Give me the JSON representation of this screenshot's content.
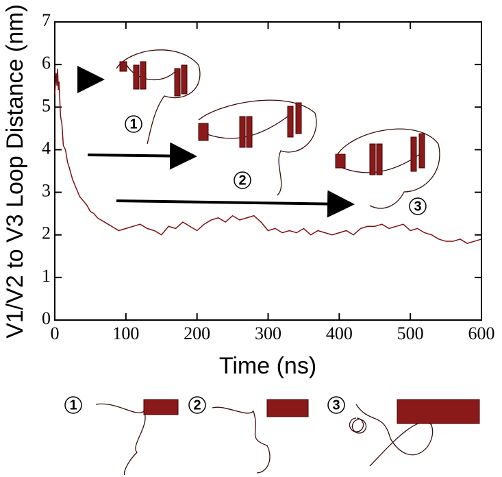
{
  "chart_data": {
    "type": "line",
    "xlabel": "Time (ns)",
    "ylabel": "V1/V2 to V3 Loop Distance (nm)",
    "x": [
      0,
      2,
      3,
      4,
      5,
      6,
      8,
      10,
      12,
      15,
      18,
      20,
      25,
      30,
      35,
      40,
      45,
      50,
      55,
      60,
      65,
      70,
      75,
      80,
      90,
      100,
      110,
      120,
      130,
      140,
      150,
      160,
      170,
      180,
      190,
      200,
      210,
      220,
      230,
      240,
      250,
      260,
      270,
      280,
      290,
      300,
      310,
      320,
      330,
      340,
      350,
      360,
      370,
      380,
      390,
      400,
      410,
      420,
      430,
      440,
      450,
      460,
      470,
      480,
      490,
      500,
      510,
      520,
      530,
      540,
      550,
      560,
      570,
      580,
      590,
      600
    ],
    "series": [
      {
        "color": "#7a1010",
        "values": [
          5.3,
          5.8,
          5.5,
          5.9,
          5.4,
          5.6,
          4.8,
          4.6,
          4.1,
          4.0,
          3.7,
          3.6,
          3.3,
          3.1,
          2.9,
          2.8,
          2.7,
          2.55,
          2.5,
          2.4,
          2.35,
          2.3,
          2.25,
          2.2,
          2.1,
          2.15,
          2.2,
          2.25,
          2.15,
          2.1,
          2.0,
          2.2,
          2.15,
          2.3,
          2.2,
          2.1,
          2.25,
          2.35,
          2.4,
          2.3,
          2.45,
          2.35,
          2.4,
          2.45,
          2.3,
          2.1,
          2.15,
          2.05,
          2.1,
          2.05,
          2.15,
          2.0,
          2.1,
          2.05,
          2.0,
          2.05,
          2.1,
          2.0,
          2.15,
          2.2,
          2.2,
          2.25,
          2.15,
          2.2,
          2.25,
          2.1,
          2.15,
          2.05,
          2.0,
          1.9,
          1.85,
          1.85,
          1.9,
          1.8,
          1.85,
          1.9
        ]
      }
    ],
    "xlim": [
      0,
      600
    ],
    "xticks": [
      0,
      100,
      200,
      300,
      400,
      500,
      600
    ],
    "ylim": [
      0,
      7
    ],
    "yticks": [
      0,
      1,
      2,
      3,
      4,
      5,
      6,
      7
    ],
    "annotations": [
      "1",
      "2",
      "3"
    ]
  }
}
